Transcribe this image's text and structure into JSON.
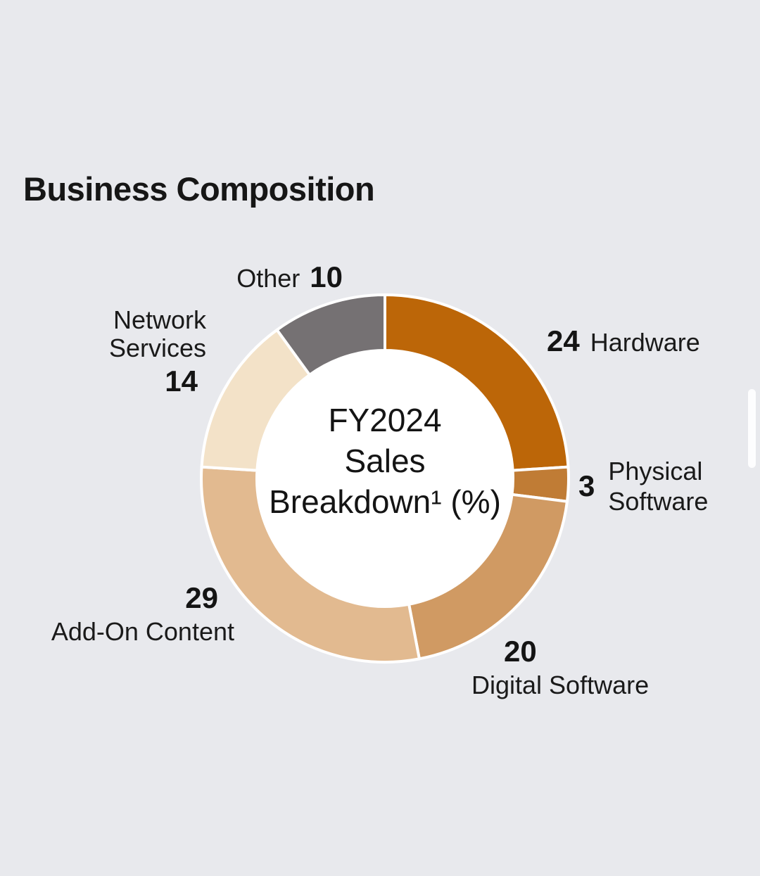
{
  "title": "Business Composition",
  "background_color": "#e8e9ed",
  "chart_data": {
    "type": "pie",
    "subtype": "donut",
    "title": "FY2024 Sales Breakdown¹ (%)",
    "center_lines": [
      "FY2024",
      "Sales",
      "Breakdown¹ (%)"
    ],
    "categories": [
      "Hardware",
      "Physical Software",
      "Digital Software",
      "Add-On Content",
      "Network Services",
      "Other"
    ],
    "values": [
      24,
      3,
      20,
      29,
      14,
      10
    ],
    "unit": "%",
    "colors": [
      "#bc6608",
      "#c07c35",
      "#d09a63",
      "#e2ba90",
      "#f3e2c8",
      "#757173"
    ],
    "start_angle_deg": 0,
    "direction": "clockwise",
    "hole_color": "#ffffff",
    "slice_border_color": "#ffffff",
    "legend_position": "around-slices"
  },
  "labels": {
    "hardware": {
      "value": "24",
      "name": "Hardware"
    },
    "physical_software": {
      "value": "3",
      "line1": "Physical",
      "line2": "Software"
    },
    "digital_software": {
      "value": "20",
      "name": "Digital Software"
    },
    "add_on_content": {
      "value": "29",
      "name": "Add-On Content"
    },
    "network_services": {
      "line1": "Network",
      "line2": "Services",
      "value": "14"
    },
    "other": {
      "name": "Other",
      "value": "10"
    }
  }
}
